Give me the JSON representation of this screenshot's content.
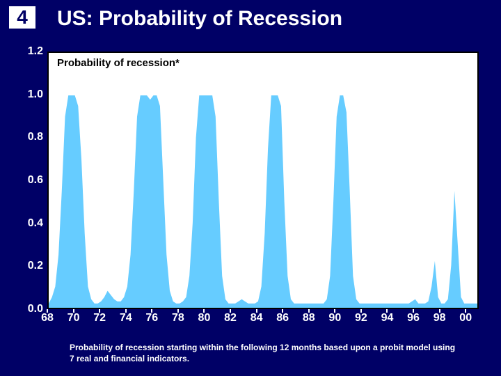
{
  "slide_number": "4",
  "title": "US: Probability of Recession",
  "chart": {
    "type": "area",
    "label": "Probability of recession*",
    "background_color": "#000066",
    "plot_bg": "#ffffff",
    "plot_border_color": "#000000",
    "series_color": "#66ccff",
    "text_color": "#ffffff",
    "title_fontsize": 30,
    "tick_fontsize": 16,
    "label_fontsize": 15,
    "ylim": [
      0.0,
      1.2
    ],
    "ytick_step": 0.2,
    "yticks": [
      "0.0",
      "0.2",
      "0.4",
      "0.6",
      "0.8",
      "1.0",
      "1.2"
    ],
    "xticks": [
      "68",
      "70",
      "72",
      "74",
      "76",
      "78",
      "80",
      "82",
      "84",
      "86",
      "88",
      "90",
      "92",
      "94",
      "96",
      "98",
      "00"
    ],
    "x_range": [
      68,
      101
    ],
    "values": [
      0.02,
      0.05,
      0.1,
      0.25,
      0.55,
      0.9,
      1.0,
      1.0,
      1.0,
      0.95,
      0.7,
      0.35,
      0.1,
      0.04,
      0.02,
      0.02,
      0.03,
      0.05,
      0.08,
      0.06,
      0.04,
      0.03,
      0.03,
      0.05,
      0.1,
      0.25,
      0.55,
      0.9,
      1.0,
      1.0,
      1.0,
      0.98,
      1.0,
      1.0,
      0.95,
      0.6,
      0.25,
      0.08,
      0.03,
      0.02,
      0.02,
      0.03,
      0.05,
      0.15,
      0.4,
      0.8,
      1.0,
      1.0,
      1.0,
      1.0,
      1.0,
      0.9,
      0.5,
      0.15,
      0.04,
      0.02,
      0.02,
      0.02,
      0.03,
      0.04,
      0.03,
      0.02,
      0.02,
      0.02,
      0.03,
      0.1,
      0.35,
      0.75,
      1.0,
      1.0,
      1.0,
      0.95,
      0.5,
      0.15,
      0.04,
      0.02,
      0.02,
      0.02,
      0.02,
      0.02,
      0.02,
      0.02,
      0.02,
      0.02,
      0.02,
      0.04,
      0.15,
      0.5,
      0.9,
      1.0,
      1.0,
      0.92,
      0.55,
      0.15,
      0.04,
      0.02,
      0.02,
      0.02,
      0.02,
      0.02,
      0.02,
      0.02,
      0.02,
      0.02,
      0.02,
      0.02,
      0.02,
      0.02,
      0.02,
      0.02,
      0.02,
      0.03,
      0.04,
      0.02,
      0.02,
      0.02,
      0.03,
      0.1,
      0.22,
      0.05,
      0.02,
      0.02,
      0.04,
      0.2,
      0.55,
      0.3,
      0.05,
      0.02,
      0.02,
      0.02,
      0.02,
      0.02
    ]
  },
  "footnote": "Probability of recession starting within the following 12 months based upon a probit model using 7 real and financial indicators."
}
